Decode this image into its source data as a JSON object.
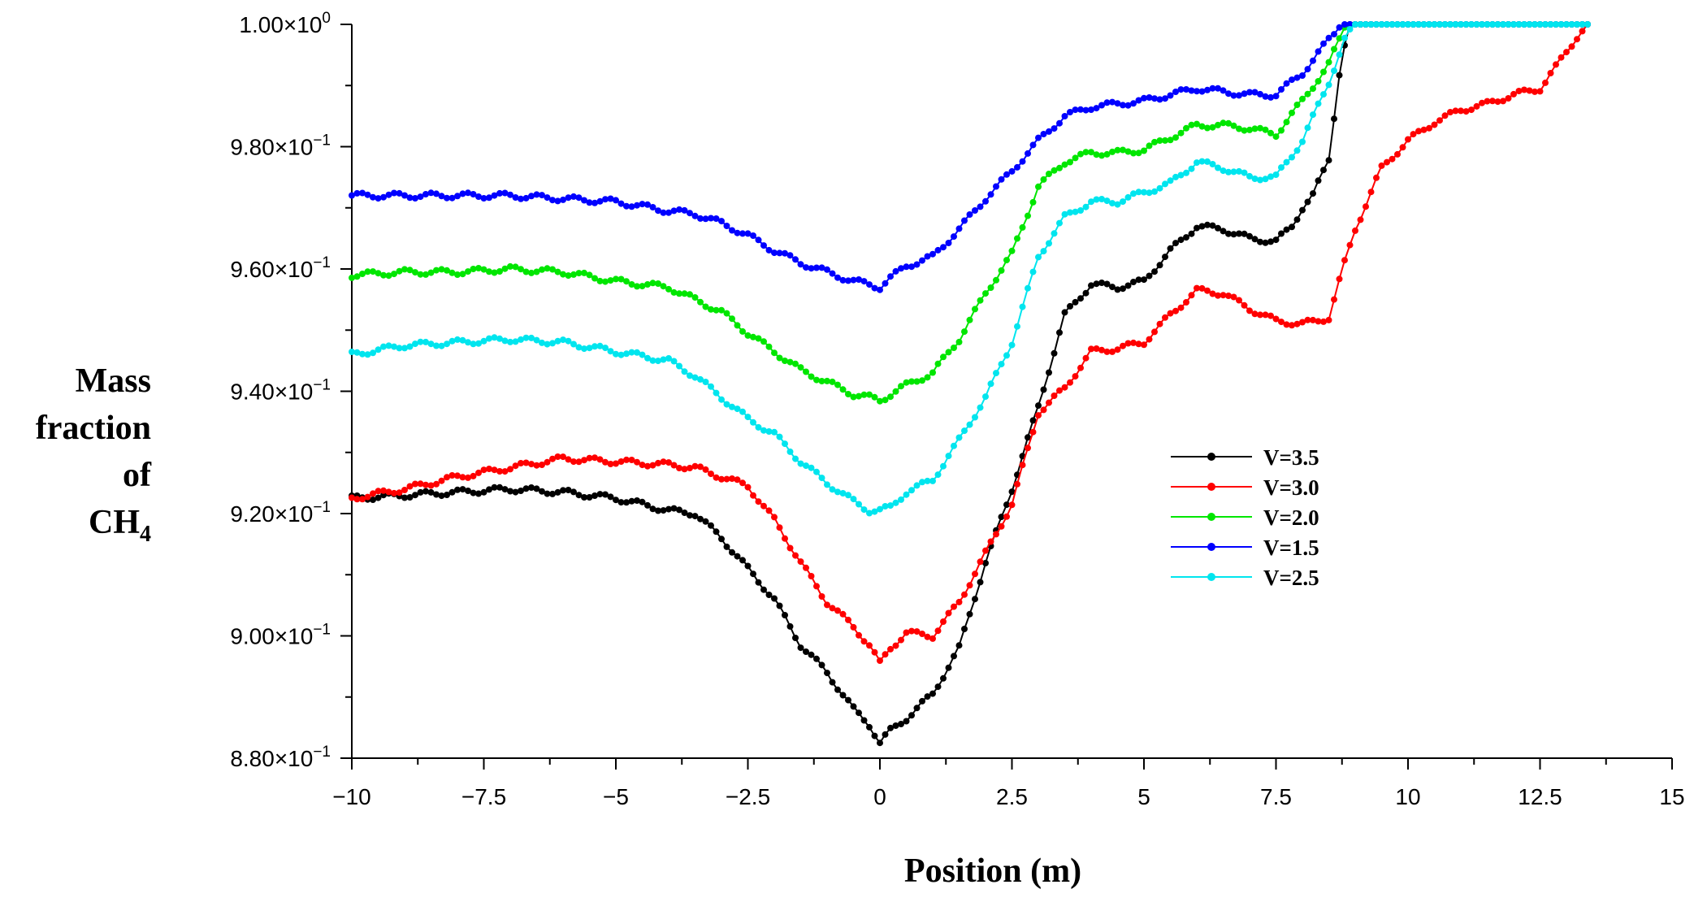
{
  "chart_data": {
    "type": "line",
    "title": "",
    "xlabel": "Position (m)",
    "ylabel_lines": [
      "Mass",
      "fraction",
      "of"
    ],
    "ylabel_formula": {
      "base": "CH",
      "subscript": "4"
    },
    "xlim": [
      -10,
      15
    ],
    "ylim": [
      0.88,
      1.0
    ],
    "x_ticks": [
      -10,
      -7.5,
      -5,
      -2.5,
      0,
      2.5,
      5,
      7.5,
      10,
      12.5,
      15
    ],
    "x_tick_labels": [
      "−10",
      "−7.5",
      "−5",
      "−2.5",
      "0",
      "2.5",
      "5",
      "7.5",
      "10",
      "12.5",
      "15"
    ],
    "y_ticks": [
      0.88,
      0.9,
      0.92,
      0.94,
      0.96,
      0.98,
      1.0
    ],
    "y_tick_labels": [
      {
        "mantissa": "8.80×10",
        "exp": "−1"
      },
      {
        "mantissa": "9.00×10",
        "exp": "−1"
      },
      {
        "mantissa": "9.20×10",
        "exp": "−1"
      },
      {
        "mantissa": "9.40×10",
        "exp": "−1"
      },
      {
        "mantissa": "9.60×10",
        "exp": "−1"
      },
      {
        "mantissa": "9.80×10",
        "exp": "−1"
      },
      {
        "mantissa": "1.00×10",
        "exp": "0"
      }
    ],
    "legend_position": "center-right",
    "series": [
      {
        "name": "V=3.5",
        "color": "#000000",
        "x": [
          -10,
          -9,
          -8,
          -7,
          -6,
          -5,
          -4,
          -3.5,
          -3,
          -2.5,
          -2,
          -1.5,
          -1,
          -0.5,
          -0.2,
          0,
          0.2,
          0.5,
          1,
          1.5,
          2,
          2.5,
          3,
          3.5,
          4,
          4.5,
          5,
          5.5,
          6,
          6.5,
          7,
          7.5,
          7.8,
          8,
          8.2,
          8.5,
          8.7,
          8.8,
          8.9,
          9.1,
          9.3
        ],
        "y": [
          0.9225,
          0.923,
          0.9235,
          0.924,
          0.9235,
          0.9225,
          0.9205,
          0.92,
          0.916,
          0.911,
          0.906,
          0.8985,
          0.894,
          0.888,
          0.8855,
          0.8825,
          0.8845,
          0.8865,
          0.8905,
          0.898,
          0.912,
          0.924,
          0.9375,
          0.9525,
          0.9575,
          0.957,
          0.958,
          0.963,
          0.967,
          0.9665,
          0.965,
          0.9645,
          0.967,
          0.97,
          0.972,
          0.978,
          0.992,
          0.9965,
          1.0,
          1.0,
          1.0
        ]
      },
      {
        "name": "V=3.0",
        "color": "#ff0000",
        "x": [
          -10,
          -9,
          -8,
          -7,
          -6,
          -5,
          -4,
          -3.5,
          -3,
          -2.5,
          -2,
          -1.5,
          -1,
          -0.5,
          -0.2,
          0,
          0.2,
          0.5,
          1,
          1.5,
          2,
          2.5,
          3,
          3.5,
          4,
          4.5,
          5,
          5.5,
          6,
          6.5,
          7,
          7.5,
          8,
          8.5,
          8.8,
          9,
          9.5,
          10,
          10.5,
          11,
          11.5,
          12,
          12.5,
          12.8,
          13,
          13.2,
          13.4
        ],
        "y": [
          0.9225,
          0.924,
          0.926,
          0.9275,
          0.929,
          0.9285,
          0.928,
          0.9275,
          0.926,
          0.9245,
          0.919,
          0.912,
          0.9055,
          0.9015,
          0.8985,
          0.8955,
          0.898,
          0.9005,
          0.9,
          0.9055,
          0.9135,
          0.9215,
          0.9365,
          0.9405,
          0.9465,
          0.947,
          0.948,
          0.9525,
          0.9565,
          0.956,
          0.9535,
          0.9515,
          0.951,
          0.952,
          0.961,
          0.9665,
          0.9765,
          0.981,
          0.984,
          0.986,
          0.987,
          0.9885,
          0.9895,
          0.993,
          0.9955,
          0.998,
          1.0
        ]
      },
      {
        "name": "V=2.0",
        "color": "#00e600",
        "x": [
          -10,
          -9,
          -8,
          -7,
          -6,
          -5,
          -4,
          -3.5,
          -3,
          -2.5,
          -2,
          -1.5,
          -1,
          -0.5,
          -0.2,
          0,
          0.2,
          0.5,
          1,
          1.5,
          2,
          2.5,
          3,
          3.5,
          4,
          4.5,
          5,
          5.5,
          6,
          6.5,
          7,
          7.5,
          8,
          8.5,
          8.8,
          9,
          9.5,
          10,
          10.5,
          11,
          11.5,
          12,
          12.5,
          13,
          13.4
        ],
        "y": [
          0.959,
          0.9595,
          0.9595,
          0.96,
          0.9595,
          0.958,
          0.957,
          0.955,
          0.953,
          0.9495,
          0.9465,
          0.9435,
          0.9415,
          0.9395,
          0.939,
          0.9385,
          0.9395,
          0.941,
          0.943,
          0.9485,
          0.956,
          0.9625,
          0.9735,
          0.9775,
          0.979,
          0.979,
          0.9795,
          0.9815,
          0.9835,
          0.9835,
          0.983,
          0.982,
          0.9875,
          0.9935,
          0.9995,
          1.0,
          1.0,
          1.0,
          1.0,
          1.0,
          1.0,
          1.0,
          1.0,
          1.0,
          1.0
        ]
      },
      {
        "name": "V=1.5",
        "color": "#0000ff",
        "x": [
          -10,
          -9,
          -8,
          -7,
          -6,
          -5,
          -4,
          -3.5,
          -3,
          -2.5,
          -2,
          -1.5,
          -1,
          -0.5,
          -0.2,
          0,
          0.2,
          0.5,
          1,
          1.5,
          2,
          2.5,
          3,
          3.5,
          4,
          4.5,
          5,
          5.5,
          6,
          6.5,
          7,
          7.5,
          8,
          8.5,
          8.7,
          8.8,
          9,
          9.5,
          10,
          10.5,
          11,
          11.5,
          12,
          12.5,
          13,
          13.4
        ],
        "y": [
          0.972,
          0.972,
          0.972,
          0.972,
          0.9715,
          0.971,
          0.9695,
          0.969,
          0.9675,
          0.9655,
          0.963,
          0.961,
          0.9595,
          0.958,
          0.9575,
          0.957,
          0.9585,
          0.9605,
          0.962,
          0.9665,
          0.9715,
          0.976,
          0.981,
          0.985,
          0.9865,
          0.987,
          0.9875,
          0.9885,
          0.9895,
          0.989,
          0.9885,
          0.9885,
          0.992,
          0.9975,
          0.9995,
          1.0,
          1.0,
          1.0,
          1.0,
          1.0,
          1.0,
          1.0,
          1.0,
          1.0,
          1.0,
          1.0
        ]
      },
      {
        "name": "V=2.5",
        "color": "#00e5ee",
        "x": [
          -10,
          -9,
          -8,
          -7,
          -6,
          -5,
          -4,
          -3.5,
          -3,
          -2.5,
          -2,
          -1.5,
          -1,
          -0.5,
          -0.2,
          0,
          0.2,
          0.5,
          1,
          1.5,
          2,
          2.5,
          3,
          3.5,
          4,
          4.5,
          5,
          5.5,
          6,
          6.5,
          7,
          7.5,
          8,
          8.5,
          8.8,
          9,
          9.5,
          10,
          10.5,
          11,
          11.5,
          12,
          12.5,
          13,
          13.4
        ],
        "y": [
          0.946,
          0.9475,
          0.948,
          0.9485,
          0.948,
          0.9465,
          0.945,
          0.9425,
          0.939,
          0.9355,
          0.933,
          0.9285,
          0.925,
          0.922,
          0.9205,
          0.9205,
          0.921,
          0.9235,
          0.9255,
          0.932,
          0.939,
          0.948,
          0.962,
          0.9685,
          0.971,
          0.971,
          0.9725,
          0.974,
          0.9775,
          0.9765,
          0.975,
          0.975,
          0.981,
          0.9905,
          0.9975,
          1.0,
          1.0,
          1.0,
          1.0,
          1.0,
          1.0,
          1.0,
          1.0,
          1.0,
          1.0
        ]
      }
    ]
  }
}
